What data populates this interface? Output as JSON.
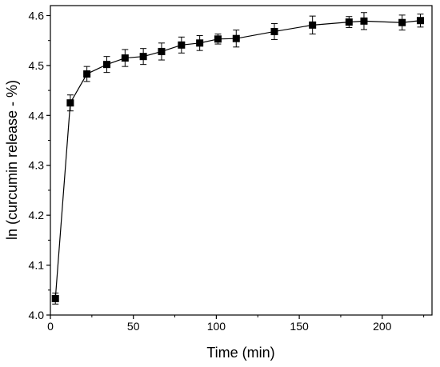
{
  "chart_data": {
    "type": "scatter",
    "xlabel": "Time (min)",
    "ylabel": "ln (curcumin release - %)",
    "xlim": [
      0,
      230
    ],
    "ylim": [
      4.0,
      4.62
    ],
    "xticks": [
      "0",
      "50",
      "100",
      "150",
      "200"
    ],
    "yticks": [
      "4.0",
      "4.1",
      "4.2",
      "4.3",
      "4.4",
      "4.5",
      "4.6"
    ],
    "legend": "none",
    "grid": false,
    "marker": "square",
    "line": true,
    "series": [
      {
        "x": [
          3,
          12,
          22,
          34,
          45,
          56,
          67,
          79,
          90,
          101,
          112,
          135,
          158,
          180,
          189,
          212,
          223
        ],
        "y": [
          4.033,
          4.425,
          4.483,
          4.502,
          4.515,
          4.518,
          4.528,
          4.541,
          4.545,
          4.553,
          4.554,
          4.568,
          4.581,
          4.587,
          4.589,
          4.586,
          4.59
        ],
        "err": [
          0.011,
          0.016,
          0.015,
          0.016,
          0.017,
          0.016,
          0.017,
          0.016,
          0.015,
          0.01,
          0.017,
          0.016,
          0.018,
          0.011,
          0.017,
          0.015,
          0.013
        ]
      }
    ]
  }
}
